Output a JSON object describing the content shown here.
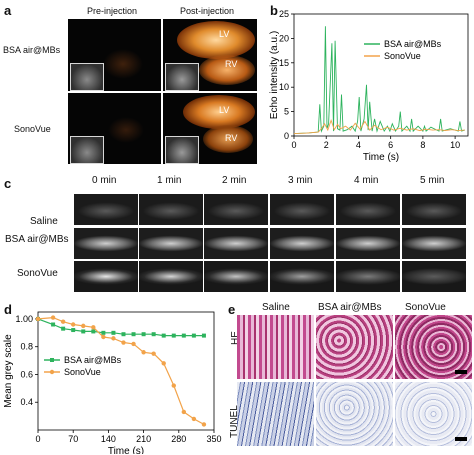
{
  "panels": {
    "a": "a",
    "b": "b",
    "c": "c",
    "d": "d",
    "e": "e"
  },
  "panel_a": {
    "col_headers": [
      "Pre-injection",
      "Post-injection"
    ],
    "row_labels": [
      "BSA air@MBs",
      "SonoVue"
    ],
    "chamber_labels": [
      "LV",
      "RV"
    ]
  },
  "panel_c": {
    "col_headers": [
      "0 min",
      "1 min",
      "2 min",
      "3 min",
      "4 min",
      "5 min"
    ],
    "row_labels": [
      "Saline",
      "BSA air@MBs",
      "SonoVue"
    ]
  },
  "panel_e": {
    "col_headers": [
      "Saline",
      "BSA air@MBs",
      "SonoVue"
    ],
    "row_labels": [
      "HE",
      "TUNEL"
    ]
  },
  "chart_data": [
    {
      "id": "b",
      "type": "line",
      "xlabel": "Time (s)",
      "ylabel": "Echo intensity (a.u.)",
      "xlim": [
        0,
        10.8
      ],
      "ylim": [
        0,
        25
      ],
      "xticks": [
        0,
        2,
        4,
        6,
        8,
        10
      ],
      "yticks": [
        0,
        5,
        10,
        15,
        20,
        25
      ],
      "legend_position": "top-right",
      "series": [
        {
          "name": "BSA air@MBs",
          "color": "#2db35d",
          "x": [
            0,
            0.8,
            1.5,
            1.6,
            1.7,
            1.85,
            1.95,
            2.05,
            2.15,
            2.35,
            2.45,
            2.55,
            2.7,
            2.85,
            2.95,
            3.05,
            3.3,
            3.6,
            3.8,
            3.95,
            4.05,
            4.15,
            4.35,
            4.5,
            4.6,
            4.7,
            4.85,
            5.0,
            5.15,
            5.35,
            5.6,
            5.8,
            5.95,
            6.1,
            6.3,
            6.5,
            6.6,
            6.7,
            7.0,
            7.2,
            7.3,
            7.4,
            7.7,
            8.0,
            8.1,
            8.2,
            8.5,
            9.0,
            9.1,
            9.2,
            9.7,
            10.2,
            10.3,
            10.4,
            10.6
          ],
          "y": [
            0.5,
            0.6,
            0.8,
            6.5,
            1,
            2,
            22.5,
            1.5,
            2.5,
            19,
            1,
            19.5,
            1.5,
            1.2,
            8.5,
            1,
            1.3,
            2,
            1,
            3,
            8,
            1,
            3.5,
            10.5,
            1.2,
            7,
            1,
            3.5,
            1,
            3,
            1,
            2,
            1,
            2.5,
            1,
            2,
            5,
            1,
            2,
            1,
            3.5,
            1,
            2,
            1,
            2,
            1,
            1.8,
            1,
            3.5,
            1,
            1.5,
            1,
            3,
            1,
            1.2
          ]
        },
        {
          "name": "SonoVue",
          "color": "#f2a34a",
          "x": [
            0,
            0.8,
            1.5,
            1.7,
            1.9,
            2.1,
            2.3,
            2.5,
            2.7,
            2.9,
            3.2,
            3.5,
            3.8,
            4.1,
            4.4,
            4.7,
            5.0,
            5.4,
            5.8,
            6.2,
            6.6,
            7.0,
            7.4,
            7.8,
            8.2,
            8.6,
            9.0,
            9.4,
            9.8,
            10.2,
            10.6
          ],
          "y": [
            0.5,
            0.6,
            0.8,
            1.5,
            2.5,
            1.2,
            3.2,
            1.3,
            2.4,
            1.5,
            2,
            1.2,
            2.6,
            1.4,
            3,
            1.2,
            2.2,
            1.3,
            1.8,
            1.2,
            1.6,
            1.2,
            1.5,
            1.1,
            1.4,
            1.2,
            1.3,
            1.1,
            1.3,
            1.1,
            1.2
          ]
        }
      ]
    },
    {
      "id": "d",
      "type": "line",
      "xlabel": "Time (s)",
      "ylabel": "Mean grey scale",
      "xlim": [
        0,
        350
      ],
      "ylim": [
        0.2,
        1.05
      ],
      "xticks": [
        0,
        70,
        140,
        210,
        280,
        350
      ],
      "yticks": [
        0.4,
        0.6,
        0.8,
        1.0
      ],
      "ytick_labels": [
        "0.4",
        "0.6",
        "0.8",
        "1.00"
      ],
      "legend_position": "bottom-left",
      "series": [
        {
          "name": "BSA air@MBs",
          "color": "#2db35d",
          "marker": "square",
          "x": [
            0,
            30,
            50,
            70,
            90,
            110,
            130,
            150,
            170,
            190,
            210,
            230,
            250,
            270,
            290,
            310,
            330
          ],
          "y": [
            1.0,
            0.96,
            0.93,
            0.92,
            0.91,
            0.91,
            0.9,
            0.9,
            0.89,
            0.89,
            0.89,
            0.89,
            0.88,
            0.88,
            0.88,
            0.88,
            0.88
          ]
        },
        {
          "name": "SonoVue",
          "color": "#f2a34a",
          "marker": "circle",
          "x": [
            0,
            30,
            50,
            70,
            90,
            110,
            130,
            150,
            170,
            190,
            210,
            230,
            250,
            270,
            290,
            310,
            330
          ],
          "y": [
            1.0,
            1.01,
            0.98,
            0.96,
            0.95,
            0.94,
            0.87,
            0.86,
            0.83,
            0.82,
            0.76,
            0.75,
            0.68,
            0.52,
            0.33,
            0.28,
            0.24
          ]
        }
      ]
    }
  ]
}
